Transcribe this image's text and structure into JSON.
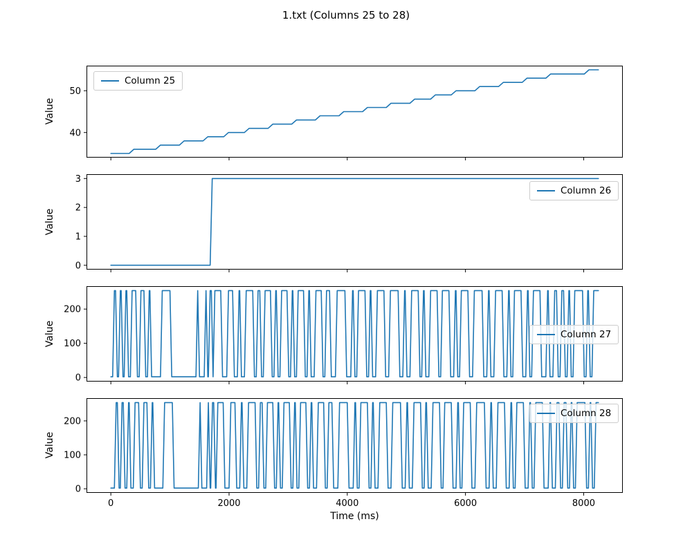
{
  "figure": {
    "title": "1.txt (Columns 25 to 28)",
    "xlabel": "Time (ms)",
    "background": "#ffffff",
    "line_color": "#1f77b4",
    "axis_color": "#000000",
    "legend_border_color": "#cccccc"
  },
  "chart_data": [
    {
      "type": "line",
      "title": "Column 25",
      "ylabel": "Value",
      "xlim": [
        -412,
        8662
      ],
      "ylim": [
        34,
        56
      ],
      "yticks": [
        40,
        50
      ],
      "xticks": [
        0,
        2000,
        4000,
        6000,
        8000
      ],
      "xticklabels_visible": false,
      "grid": false,
      "legend_position": "upper-left",
      "series": [
        {
          "name": "Column 25",
          "color": "#1f77b4",
          "points": [
            [
              0,
              35
            ],
            [
              310,
              35
            ],
            [
              390,
              36
            ],
            [
              760,
              36
            ],
            [
              840,
              37
            ],
            [
              1160,
              37
            ],
            [
              1240,
              38
            ],
            [
              1560,
              38
            ],
            [
              1640,
              39
            ],
            [
              1910,
              39
            ],
            [
              1990,
              40
            ],
            [
              2260,
              40
            ],
            [
              2340,
              41
            ],
            [
              2660,
              41
            ],
            [
              2740,
              42
            ],
            [
              3060,
              42
            ],
            [
              3140,
              43
            ],
            [
              3460,
              43
            ],
            [
              3540,
              44
            ],
            [
              3860,
              44
            ],
            [
              3940,
              45
            ],
            [
              4260,
              45
            ],
            [
              4340,
              46
            ],
            [
              4660,
              46
            ],
            [
              4740,
              47
            ],
            [
              5060,
              47
            ],
            [
              5140,
              48
            ],
            [
              5410,
              48
            ],
            [
              5490,
              49
            ],
            [
              5760,
              49
            ],
            [
              5840,
              50
            ],
            [
              6160,
              50
            ],
            [
              6240,
              51
            ],
            [
              6560,
              51
            ],
            [
              6640,
              52
            ],
            [
              6960,
              52
            ],
            [
              7040,
              53
            ],
            [
              7360,
              53
            ],
            [
              7440,
              54
            ],
            [
              8010,
              54
            ],
            [
              8090,
              55
            ],
            [
              8250,
              55
            ]
          ]
        }
      ]
    },
    {
      "type": "line",
      "title": "Column 26",
      "ylabel": "Value",
      "xlim": [
        -412,
        8662
      ],
      "ylim": [
        -0.15,
        3.15
      ],
      "yticks": [
        0,
        1,
        2,
        3
      ],
      "xticks": [
        0,
        2000,
        4000,
        6000,
        8000
      ],
      "xticklabels_visible": false,
      "grid": false,
      "legend_position": "upper-right",
      "series": [
        {
          "name": "Column 26",
          "color": "#1f77b4",
          "points": [
            [
              0,
              0
            ],
            [
              1680,
              0
            ],
            [
              1715,
              3
            ],
            [
              8250,
              3
            ]
          ]
        }
      ]
    },
    {
      "type": "line",
      "title": "Column 27",
      "ylabel": "Value",
      "xlim": [
        -412,
        8662
      ],
      "ylim": [
        -12,
        267
      ],
      "yticks": [
        0,
        100,
        200
      ],
      "xticks": [
        0,
        2000,
        4000,
        6000,
        8000
      ],
      "xticklabels_visible": false,
      "grid": false,
      "legend_position": "center-right",
      "series": [
        {
          "name": "Column 27",
          "color": "#1f77b4",
          "low": 2,
          "high": 254,
          "ramp": 30,
          "highs": [
            [
              30,
              80
            ],
            [
              130,
              175
            ],
            [
              225,
              270
            ],
            [
              330,
              420
            ],
            [
              480,
              560
            ],
            [
              620,
              660
            ],
            [
              840,
              1000
            ],
            [
              1440,
              1470
            ],
            [
              1580,
              1610
            ],
            [
              1650,
              1700
            ],
            [
              1730,
              1860
            ],
            [
              1960,
              2060
            ],
            [
              2140,
              2180
            ],
            [
              2260,
              2400
            ],
            [
              2460,
              2520
            ],
            [
              2580,
              2700
            ],
            [
              2760,
              2800
            ],
            [
              2860,
              2980
            ],
            [
              3040,
              3080
            ],
            [
              3140,
              3260
            ],
            [
              3320,
              3360
            ],
            [
              3440,
              3560
            ],
            [
              3620,
              3700
            ],
            [
              3800,
              3960
            ],
            [
              4060,
              4100
            ],
            [
              4160,
              4300
            ],
            [
              4360,
              4400
            ],
            [
              4480,
              4620
            ],
            [
              4700,
              4860
            ],
            [
              4940,
              4980
            ],
            [
              5060,
              5200
            ],
            [
              5260,
              5300
            ],
            [
              5380,
              5520
            ],
            [
              5580,
              5720
            ],
            [
              5800,
              5840
            ],
            [
              5900,
              6040
            ],
            [
              6120,
              6280
            ],
            [
              6360,
              6400
            ],
            [
              6480,
              6620
            ],
            [
              6700,
              6740
            ],
            [
              6800,
              6940
            ],
            [
              7020,
              7060
            ],
            [
              7120,
              7260
            ],
            [
              7360,
              7400
            ],
            [
              7480,
              7540
            ],
            [
              7600,
              7660
            ],
            [
              7720,
              7760
            ],
            [
              7820,
              7980
            ],
            [
              8040,
              8080
            ],
            [
              8140,
              8250
            ]
          ]
        }
      ]
    },
    {
      "type": "line",
      "title": "Column 28",
      "ylabel": "Value",
      "xlim": [
        -412,
        8662
      ],
      "ylim": [
        -12,
        267
      ],
      "yticks": [
        0,
        100,
        200
      ],
      "xticks": [
        0,
        2000,
        4000,
        6000,
        8000
      ],
      "xticklabels_visible": true,
      "grid": false,
      "legend_position": "upper-right",
      "series": [
        {
          "name": "Column 28",
          "color": "#1f77b4",
          "low": 2,
          "high": 254,
          "ramp": 30,
          "highs": [
            [
              60,
              110
            ],
            [
              160,
              210
            ],
            [
              270,
              310
            ],
            [
              380,
              470
            ],
            [
              530,
              610
            ],
            [
              670,
              710
            ],
            [
              880,
              1040
            ],
            [
              1480,
              1510
            ],
            [
              1620,
              1650
            ],
            [
              1690,
              1740
            ],
            [
              1780,
              1900
            ],
            [
              2000,
              2100
            ],
            [
              2180,
              2220
            ],
            [
              2300,
              2440
            ],
            [
              2500,
              2560
            ],
            [
              2620,
              2740
            ],
            [
              2800,
              2840
            ],
            [
              2900,
              3020
            ],
            [
              3080,
              3120
            ],
            [
              3180,
              3300
            ],
            [
              3360,
              3400
            ],
            [
              3480,
              3600
            ],
            [
              3660,
              3740
            ],
            [
              3840,
              4000
            ],
            [
              4100,
              4140
            ],
            [
              4200,
              4340
            ],
            [
              4400,
              4440
            ],
            [
              4520,
              4660
            ],
            [
              4740,
              4900
            ],
            [
              4980,
              5020
            ],
            [
              5100,
              5240
            ],
            [
              5300,
              5340
            ],
            [
              5420,
              5560
            ],
            [
              5620,
              5760
            ],
            [
              5840,
              5880
            ],
            [
              5940,
              6080
            ],
            [
              6160,
              6320
            ],
            [
              6400,
              6440
            ],
            [
              6520,
              6660
            ],
            [
              6740,
              6780
            ],
            [
              6840,
              6980
            ],
            [
              7060,
              7100
            ],
            [
              7160,
              7300
            ],
            [
              7400,
              7440
            ],
            [
              7520,
              7580
            ],
            [
              7640,
              7700
            ],
            [
              7760,
              7800
            ],
            [
              7860,
              8020
            ],
            [
              8080,
              8120
            ],
            [
              8180,
              8250
            ]
          ]
        }
      ]
    }
  ]
}
